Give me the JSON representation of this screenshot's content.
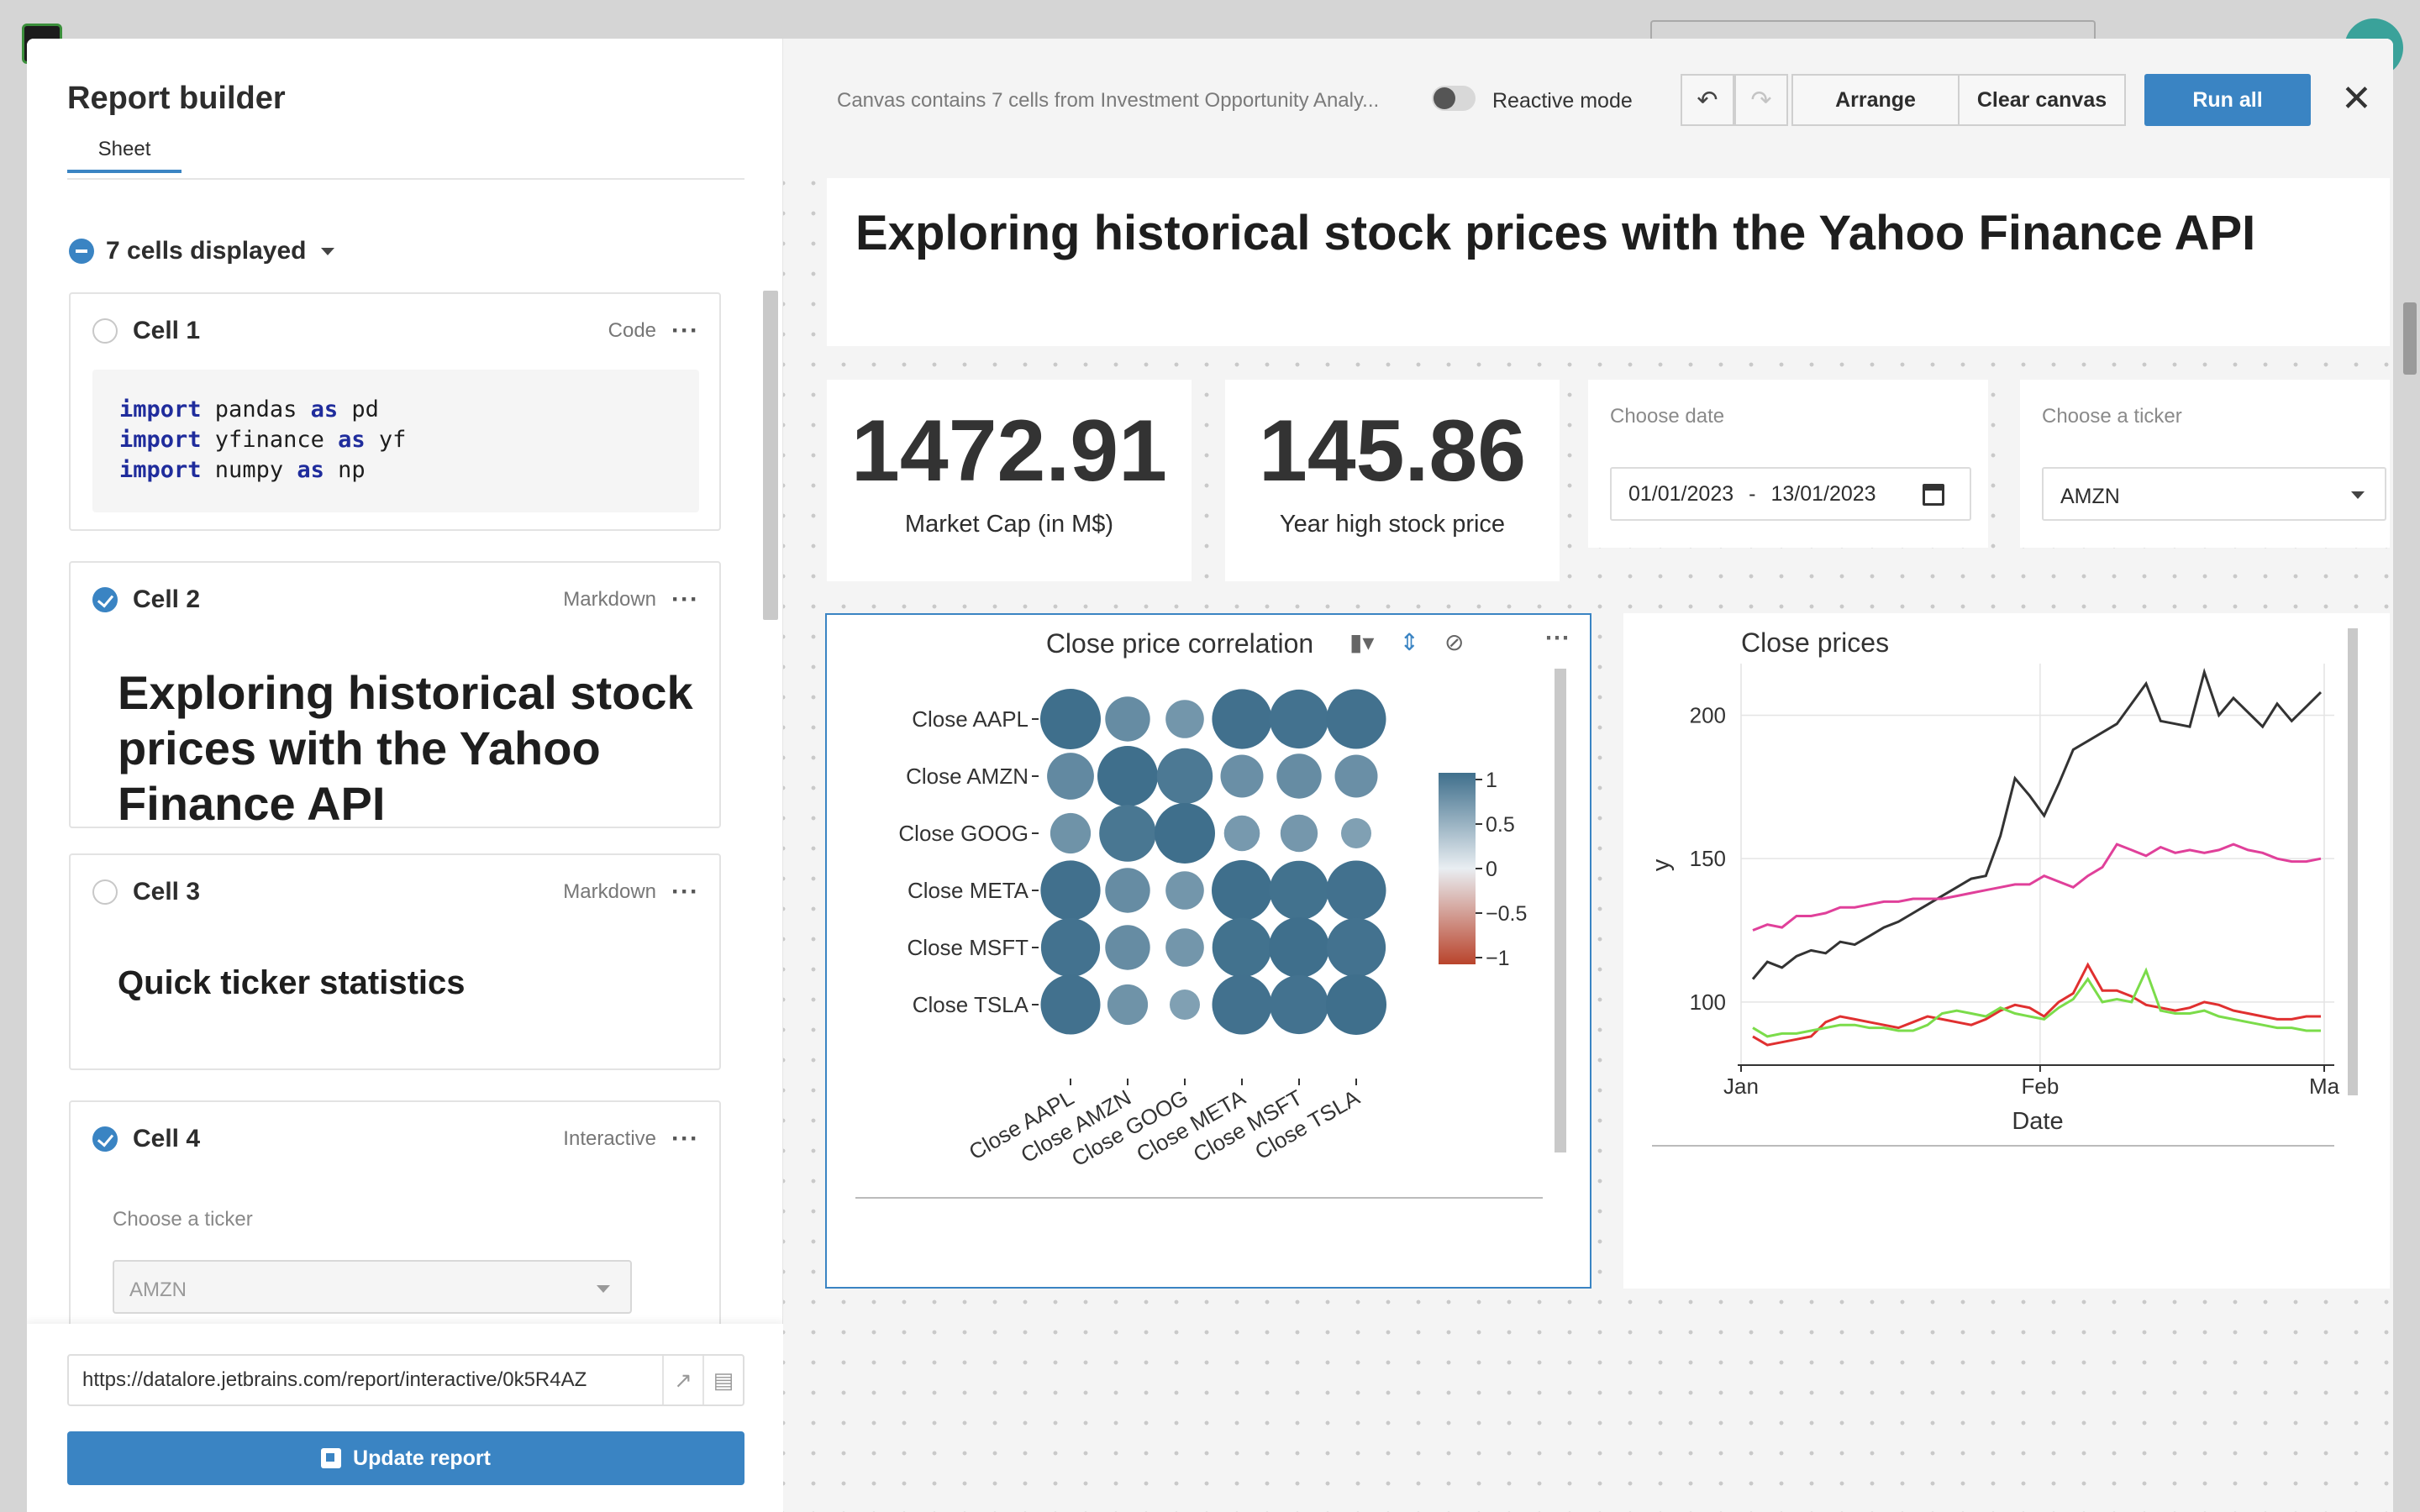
{
  "left_panel": {
    "title": "Report builder",
    "tab": "Sheet",
    "cells_displayed": "7 cells displayed",
    "cells": [
      {
        "name": "Cell 1",
        "type": "Code",
        "checked": false,
        "code_lines": [
          {
            "kw1": "import",
            "mod": " pandas ",
            "kw2": "as",
            "alias": " pd"
          },
          {
            "kw1": "import",
            "mod": " yfinance ",
            "kw2": "as",
            "alias": " yf"
          },
          {
            "kw1": "import",
            "mod": " numpy ",
            "kw2": "as",
            "alias": " np"
          }
        ]
      },
      {
        "name": "Cell 2",
        "type": "Markdown",
        "checked": true,
        "text": "Exploring historical stock prices with the Yahoo Finance API"
      },
      {
        "name": "Cell 3",
        "type": "Markdown",
        "checked": false,
        "text": "Quick ticker statistics"
      },
      {
        "name": "Cell 4",
        "type": "Interactive",
        "checked": true,
        "label": "Choose a ticker",
        "value": "AMZN"
      }
    ],
    "url": "https://datalore.jetbrains.com/report/interactive/0k5R4AZ",
    "update_button": "Update report"
  },
  "toolbar": {
    "canvas_info": "Canvas contains 7 cells from Investment Opportunity Analy...",
    "reactive_label": "Reactive mode",
    "arrange": "Arrange",
    "clear": "Clear canvas",
    "run_all": "Run all"
  },
  "canvas": {
    "title": "Exploring historical stock prices with the Yahoo Finance API",
    "kpis": [
      {
        "value": "1472.91",
        "label": "Market Cap (in M$)"
      },
      {
        "value": "145.86",
        "label": "Year high stock price"
      }
    ],
    "date_filter": {
      "label": "Choose date",
      "from": "01/01/2023",
      "sep": "-",
      "to": "13/01/2023"
    },
    "ticker_filter": {
      "label": "Choose a ticker",
      "value": "AMZN"
    }
  },
  "colors": {
    "accent": "#3a84c3",
    "corr_positive": "#3f6f8c",
    "corr_negative": "#b9442c"
  },
  "chart_data": [
    {
      "type": "heatmap",
      "title": "Close price correlation",
      "rows": [
        "Close AAPL",
        "Close AMZN",
        "Close GOOG",
        "Close META",
        "Close MSFT",
        "Close TSLA"
      ],
      "cols": [
        "Close AAPL",
        "Close AMZN",
        "Close GOOG",
        "Close META",
        "Close MSFT",
        "Close TSLA"
      ],
      "values": [
        [
          1.0,
          0.55,
          0.4,
          0.98,
          0.95,
          0.97
        ],
        [
          0.6,
          1.0,
          0.85,
          0.5,
          0.55,
          0.5
        ],
        [
          0.45,
          0.88,
          1.0,
          0.35,
          0.38,
          0.25
        ],
        [
          0.98,
          0.55,
          0.4,
          1.0,
          0.96,
          0.97
        ],
        [
          0.95,
          0.55,
          0.4,
          0.96,
          1.0,
          0.95
        ],
        [
          0.97,
          0.45,
          0.25,
          0.97,
          0.95,
          1.0
        ]
      ],
      "legend_ticks": [
        "1",
        "0.5",
        "0",
        "−0.5",
        "−1"
      ],
      "legend_placement": "right"
    },
    {
      "type": "line",
      "title": "Close prices",
      "xlabel": "Date",
      "ylabel": "y",
      "x_ticks": [
        "Jan",
        "Feb",
        "Ma"
      ],
      "y_ticks": [
        100,
        150,
        200
      ],
      "ylim": [
        78,
        218
      ],
      "n_points": 40,
      "series": [
        {
          "color": "#333333",
          "values": [
            108,
            114,
            112,
            116,
            118,
            117,
            121,
            120,
            123,
            126,
            128,
            131,
            134,
            137,
            140,
            143,
            144,
            158,
            178,
            172,
            165,
            176,
            188,
            191,
            194,
            197,
            204,
            211,
            198,
            197,
            196,
            215,
            200,
            206,
            201,
            196,
            204,
            198,
            203,
            208
          ]
        },
        {
          "color": "#e0409a",
          "values": [
            125,
            127,
            126,
            130,
            130,
            131,
            133,
            133,
            134,
            135,
            135,
            136,
            136,
            136,
            137,
            138,
            139,
            140,
            141,
            141,
            144,
            142,
            140,
            144,
            147,
            155,
            153,
            151,
            154,
            152,
            153,
            152,
            153,
            155,
            153,
            152,
            150,
            149,
            149,
            150
          ]
        },
        {
          "color": "#e03030",
          "values": [
            88,
            85,
            86,
            87,
            88,
            93,
            95,
            94,
            93,
            92,
            91,
            93,
            95,
            94,
            93,
            92,
            94,
            97,
            99,
            98,
            95,
            100,
            103,
            113,
            104,
            104,
            102,
            99,
            98,
            97,
            98,
            100,
            99,
            97,
            96,
            95,
            94,
            94,
            95,
            95
          ]
        },
        {
          "color": "#7bdc4a",
          "values": [
            91,
            88,
            89,
            89,
            90,
            91,
            92,
            92,
            91,
            91,
            90,
            90,
            92,
            96,
            97,
            96,
            95,
            98,
            96,
            95,
            94,
            98,
            101,
            108,
            100,
            101,
            100,
            111,
            97,
            96,
            96,
            97,
            95,
            94,
            93,
            92,
            91,
            91,
            90,
            90
          ]
        }
      ]
    }
  ]
}
